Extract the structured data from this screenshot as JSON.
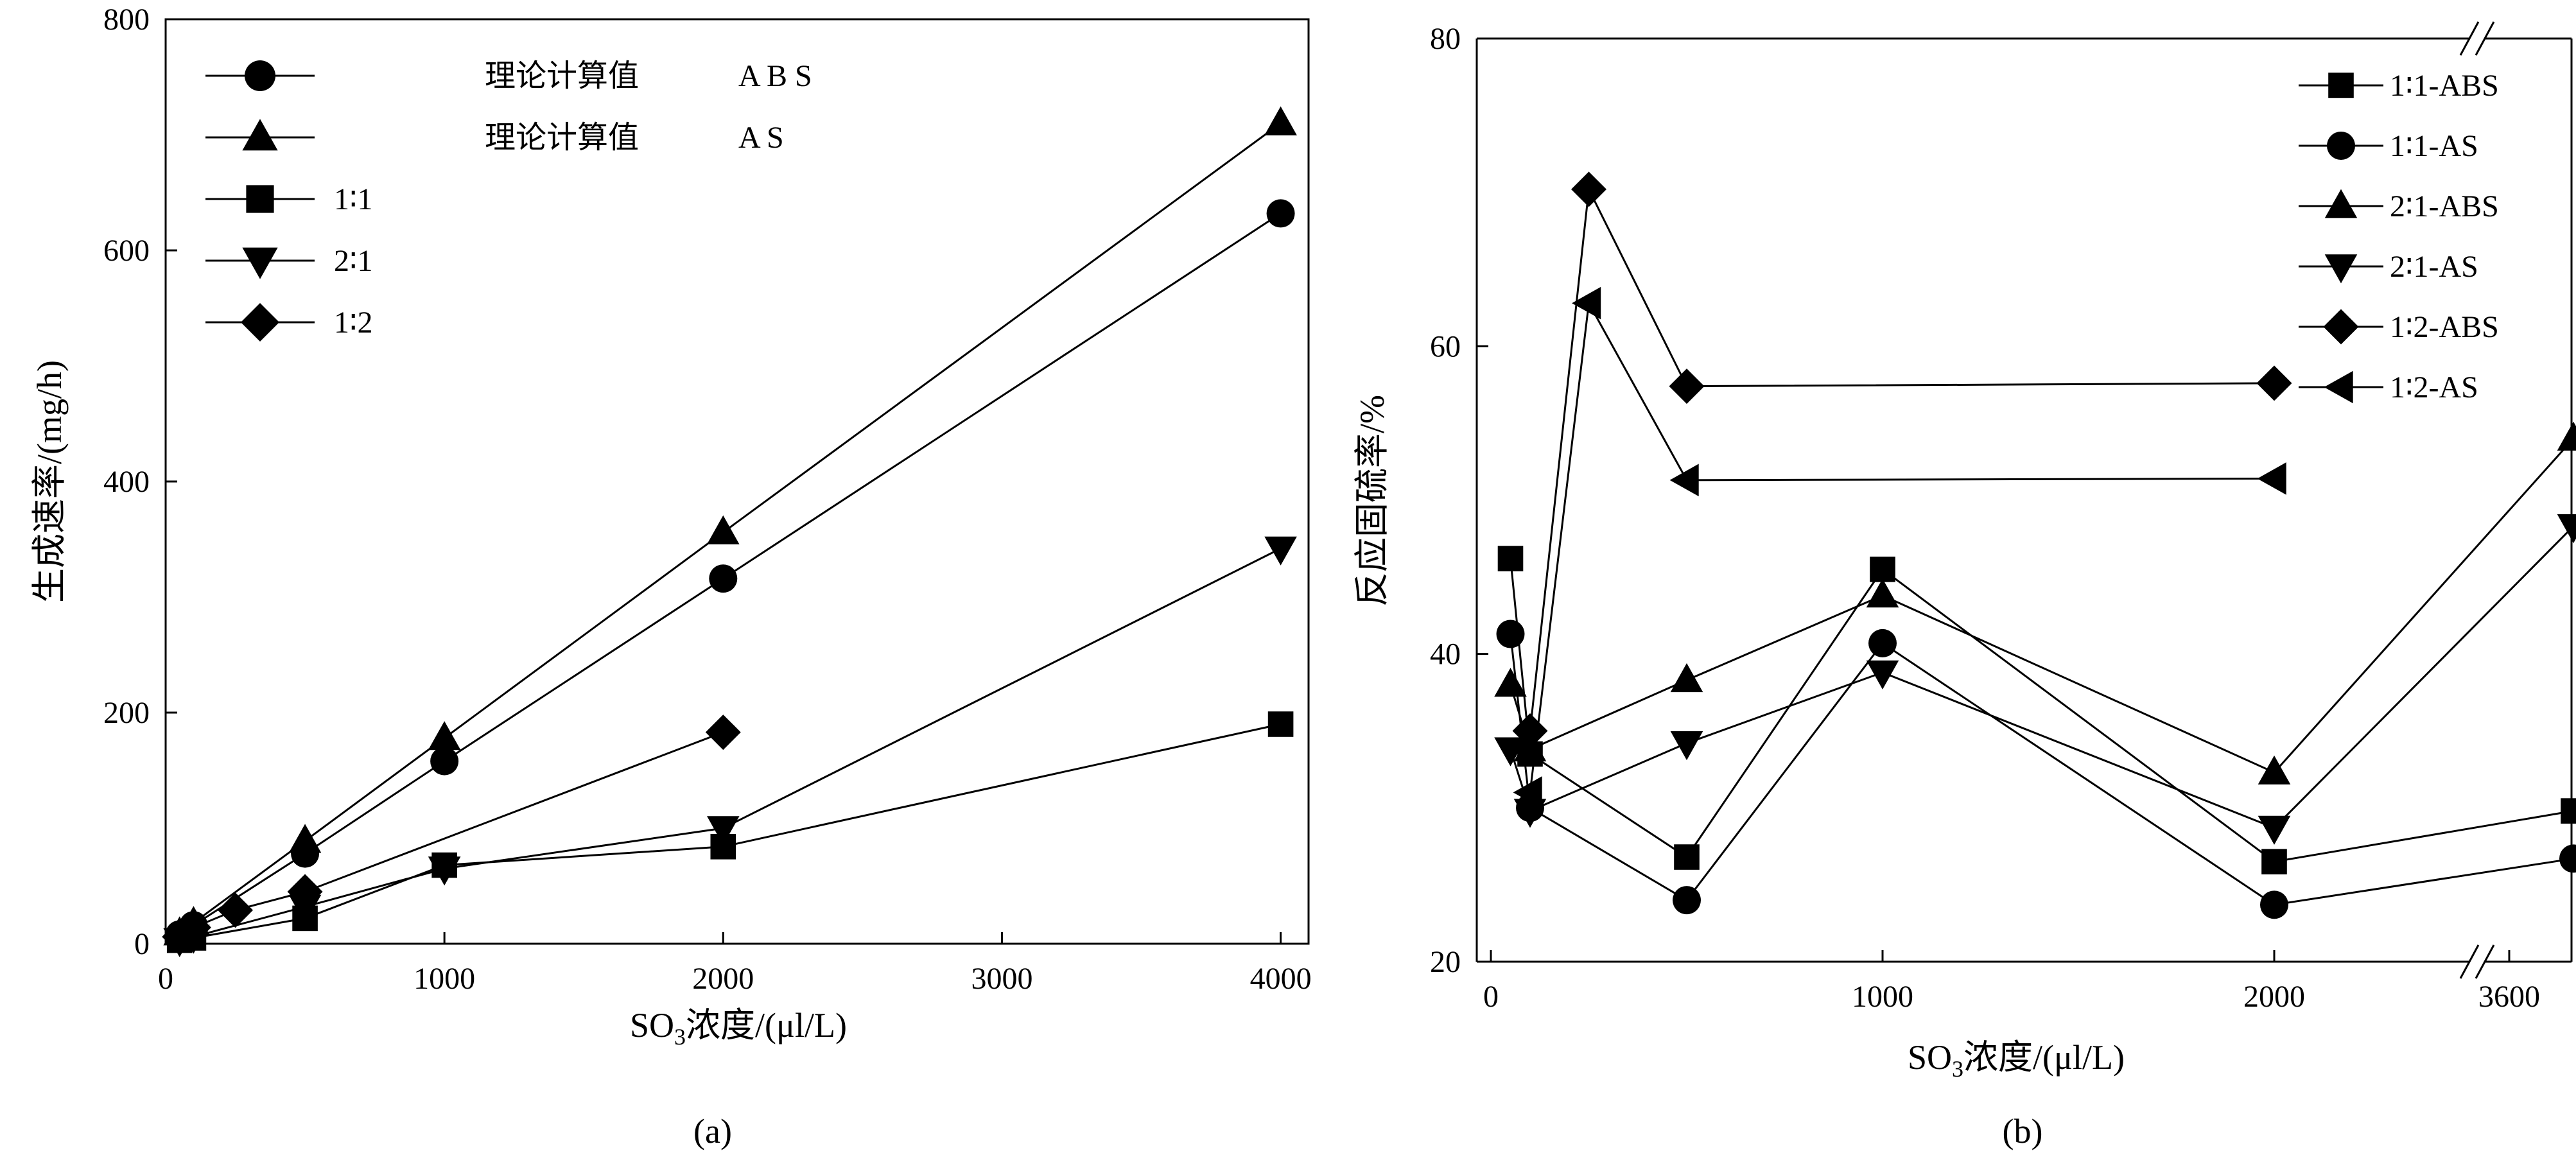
{
  "chart_data": [
    {
      "type": "line",
      "panel_label": "(a)",
      "xlabel": "SO₃浓度/(μl/L)",
      "ylabel": "生成速率/(mg/h)",
      "xlim": [
        0,
        4100
      ],
      "ylim": [
        0,
        800
      ],
      "xticks": [
        0,
        1000,
        2000,
        3000,
        4000
      ],
      "yticks": [
        0,
        200,
        400,
        600,
        800
      ],
      "grid": false,
      "legend_position": "top-left",
      "series": [
        {
          "name": "理论计算值 ABS",
          "legend_label": "",
          "legend_text": "理论计算值",
          "legend_code": "A B S",
          "marker": "circle",
          "x": [
            50,
            100,
            500,
            1000,
            2000,
            4000
          ],
          "y": [
            8,
            16,
            78,
            158,
            316,
            632
          ]
        },
        {
          "name": "理论计算值 AS",
          "legend_label": "",
          "legend_text": "理论计算值",
          "legend_code": "A S",
          "marker": "triangle-up",
          "x": [
            50,
            100,
            500,
            1000,
            2000,
            4000
          ],
          "y": [
            9,
            18,
            89,
            178,
            356,
            710
          ]
        },
        {
          "name": "1:1",
          "legend_label": "1∶1",
          "marker": "square",
          "x": [
            50,
            100,
            500,
            1000,
            2000,
            4000
          ],
          "y": [
            3,
            5,
            22,
            68,
            84,
            190
          ]
        },
        {
          "name": "2:1",
          "legend_label": "2∶1",
          "marker": "triangle-down",
          "x": [
            50,
            100,
            500,
            1000,
            2000,
            4000
          ],
          "y": [
            3,
            6,
            32,
            65,
            100,
            342
          ]
        },
        {
          "name": "1:2",
          "legend_label": "1∶2",
          "marker": "diamond",
          "x": [
            50,
            100,
            250,
            500,
            2000
          ],
          "y": [
            6,
            14,
            29,
            45,
            183
          ]
        }
      ]
    },
    {
      "type": "line",
      "panel_label": "(b)",
      "xlabel": "SO₃浓度/(μl/L)",
      "ylabel": "反应固硫率/%",
      "xlim_note": "broken x axis: 0–2500 then 3500–3800",
      "xticks": [
        "0",
        "1000",
        "2000",
        "3600"
      ],
      "ylim": [
        20,
        80
      ],
      "yticks": [
        20,
        40,
        60,
        80
      ],
      "grid": false,
      "legend_position": "top-right",
      "series": [
        {
          "name": "1:1-ABS",
          "legend_label": "1∶1-ABS",
          "marker": "square",
          "x": [
            50,
            100,
            500,
            1000,
            2000,
            3800
          ],
          "y": [
            46.2,
            33.5,
            26.8,
            45.5,
            26.5,
            29.8
          ]
        },
        {
          "name": "1:1-AS",
          "legend_label": "1∶1-AS",
          "marker": "circle",
          "x": [
            50,
            100,
            500,
            1000,
            2000,
            3800
          ],
          "y": [
            41.3,
            30.0,
            24.0,
            40.7,
            23.7,
            26.7
          ]
        },
        {
          "name": "2:1-ABS",
          "legend_label": "2∶1-ABS",
          "marker": "triangle-up",
          "x": [
            50,
            100,
            500,
            1000,
            2000,
            3800
          ],
          "y": [
            38.0,
            33.8,
            38.3,
            43.8,
            32.3,
            54.0
          ]
        },
        {
          "name": "2:1-AS",
          "legend_label": "2∶1-AS",
          "marker": "triangle-down",
          "x": [
            50,
            100,
            500,
            1000,
            2000,
            3800
          ],
          "y": [
            33.8,
            29.8,
            34.2,
            38.8,
            28.7,
            48.3
          ]
        },
        {
          "name": "1:2-ABS",
          "legend_label": "1∶2-ABS",
          "marker": "diamond",
          "x": [
            100,
            250,
            500,
            2000
          ],
          "y": [
            35.0,
            70.2,
            57.4,
            57.6
          ]
        },
        {
          "name": "1:2-AS",
          "legend_label": "1∶2-AS",
          "marker": "triangle-left",
          "x": [
            100,
            250,
            500,
            2000
          ],
          "y": [
            31.0,
            62.8,
            51.3,
            51.4
          ]
        }
      ]
    }
  ]
}
